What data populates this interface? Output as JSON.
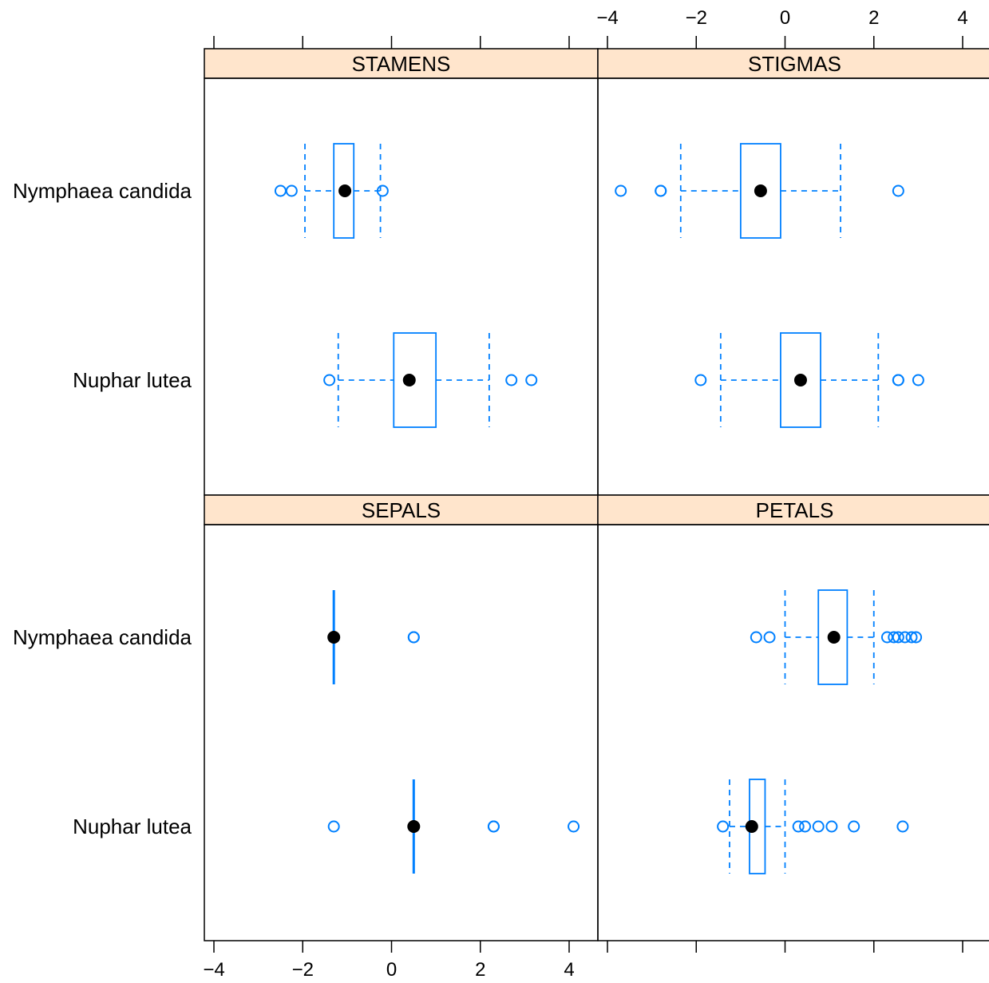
{
  "chart_data": {
    "type": "box",
    "layout": "2x2 lattice bwplot",
    "categories": [
      "Nymphaea candida",
      "Nuphar lutea"
    ],
    "x_ticks": [
      -4,
      -2,
      0,
      2,
      4
    ],
    "x_tick_labels": [
      "−4",
      "−2",
      "0",
      "2",
      "4"
    ],
    "xlim": [
      -4.2,
      4.5
    ],
    "colors": {
      "box": "#0080ff",
      "median": "#000000",
      "strip": "#ffe5cc"
    },
    "panels": [
      {
        "title": "STAMENS",
        "groups": [
          {
            "category": "Nymphaea candida",
            "whisker_low": -1.95,
            "q1": -1.3,
            "median": -1.05,
            "q3": -0.85,
            "whisker_high": -0.25,
            "outliers": [
              -2.5,
              -2.25,
              -0.2
            ]
          },
          {
            "category": "Nuphar lutea",
            "whisker_low": -1.2,
            "q1": 0.05,
            "median": 0.4,
            "q3": 1.0,
            "whisker_high": 2.2,
            "outliers": [
              -1.4,
              2.7,
              3.15
            ]
          }
        ]
      },
      {
        "title": "STIGMAS",
        "groups": [
          {
            "category": "Nymphaea candida",
            "whisker_low": -2.35,
            "q1": -1.0,
            "median": -0.55,
            "q3": -0.1,
            "whisker_high": 1.25,
            "outliers": [
              -3.7,
              -2.8,
              -2.8,
              2.55
            ]
          },
          {
            "category": "Nuphar lutea",
            "whisker_low": -1.45,
            "q1": -0.1,
            "median": 0.35,
            "q3": 0.8,
            "whisker_high": 2.1,
            "outliers": [
              -1.9,
              2.55,
              2.55,
              3.0
            ]
          }
        ]
      },
      {
        "title": "SEPALS",
        "groups": [
          {
            "category": "Nymphaea candida",
            "whisker_low": -1.3,
            "q1": -1.3,
            "median": -1.3,
            "q3": -1.3,
            "whisker_high": -1.3,
            "outliers": [
              0.5,
              0.5
            ]
          },
          {
            "category": "Nuphar lutea",
            "whisker_low": 0.5,
            "q1": 0.5,
            "median": 0.5,
            "q3": 0.5,
            "whisker_high": 0.5,
            "outliers": [
              -1.3,
              2.3,
              2.3,
              4.1
            ]
          }
        ]
      },
      {
        "title": "PETALS",
        "groups": [
          {
            "category": "Nymphaea candida",
            "whisker_low": 0.0,
            "q1": 0.75,
            "median": 1.1,
            "q3": 1.4,
            "whisker_high": 2.0,
            "outliers": [
              -0.65,
              -0.35,
              2.3,
              2.45,
              2.55,
              2.7,
              2.85,
              2.95
            ]
          },
          {
            "category": "Nuphar lutea",
            "whisker_low": -1.25,
            "q1": -0.8,
            "median": -0.75,
            "q3": -0.45,
            "whisker_high": 0.0,
            "outliers": [
              -1.4,
              0.3,
              0.45,
              0.75,
              1.05,
              1.55,
              2.65
            ]
          }
        ]
      }
    ]
  }
}
